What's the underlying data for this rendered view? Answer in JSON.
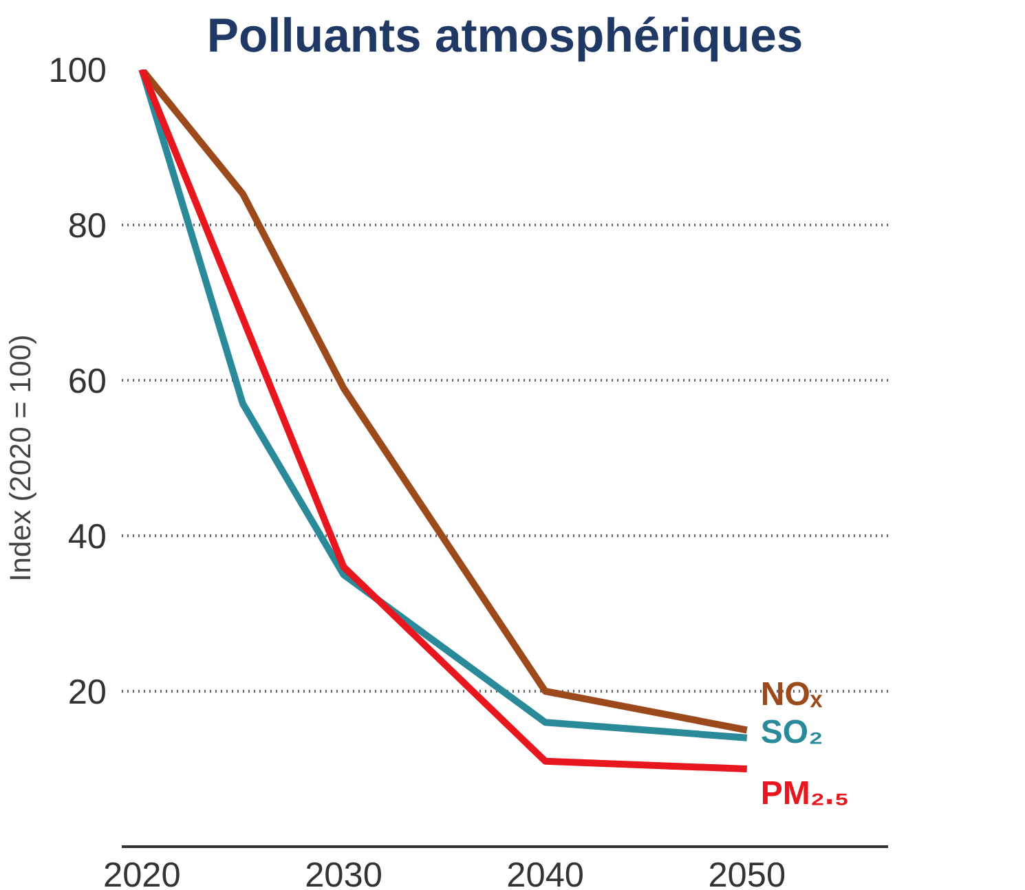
{
  "chart_data": {
    "type": "line",
    "title": "Polluants atmosphériques",
    "ylabel": "Index (2020 = 100)",
    "x": [
      2020,
      2025,
      2030,
      2040,
      2050
    ],
    "series": [
      {
        "name": "NOₓ",
        "color": "#9c4a1c",
        "values": [
          100,
          84,
          59,
          20,
          15
        ]
      },
      {
        "name": "SO₂",
        "color": "#2a8a9a",
        "values": [
          100,
          57,
          35,
          16,
          14
        ]
      },
      {
        "name": "PM₂.₅",
        "color": "#e8161e",
        "x": [
          2020,
          2030,
          2040,
          2050
        ],
        "values": [
          100,
          36,
          11,
          10
        ]
      }
    ],
    "xlim": [
      2019,
      2057
    ],
    "ylim": [
      0,
      100
    ],
    "xticks": [
      2020,
      2030,
      2040,
      2050
    ],
    "yticks": [
      20,
      40,
      60,
      80,
      100
    ],
    "grid": "y",
    "marker": "none",
    "line_style": "solid"
  }
}
